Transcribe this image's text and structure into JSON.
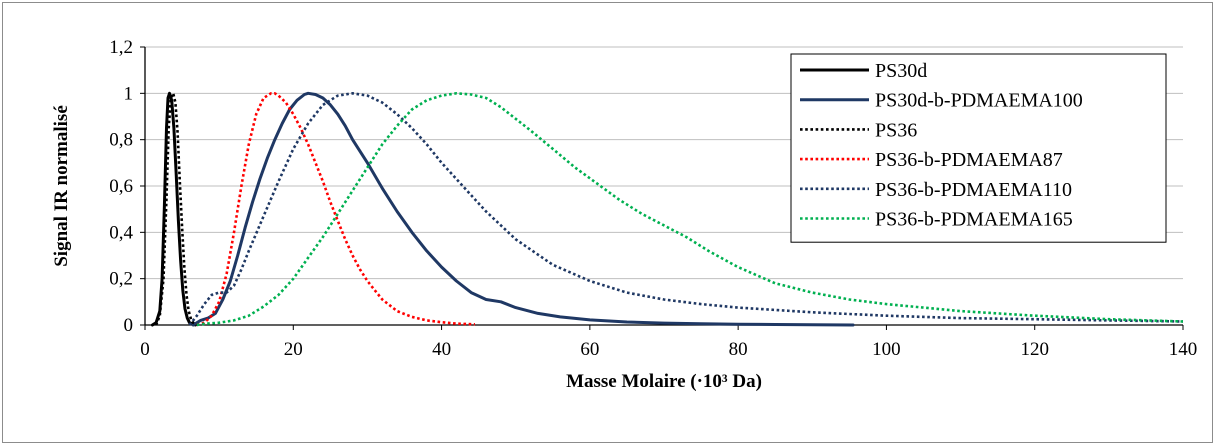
{
  "chart_data": {
    "type": "line",
    "title": "",
    "xlabel": "Masse Molaire (·10³ Da)",
    "ylabel": "Signal IR normalisé",
    "xlim": [
      0,
      140
    ],
    "ylim": [
      0,
      1.2
    ],
    "x_ticks": [
      0,
      20,
      40,
      60,
      80,
      100,
      120,
      140
    ],
    "y_ticks": [
      0,
      0.2,
      0.4,
      0.6,
      0.8,
      1,
      1.2
    ],
    "x_tick_labels": [
      "0",
      "20",
      "40",
      "60",
      "80",
      "100",
      "120",
      "140"
    ],
    "y_tick_labels": [
      "0",
      "0,2",
      "0,4",
      "0,6",
      "0,8",
      "1",
      "1,2"
    ],
    "grid": true,
    "legend_position": "top-right",
    "series": [
      {
        "name": "PS30d",
        "color": "#000000",
        "style": "solid",
        "x": [
          1.0,
          1.5,
          2.0,
          2.3,
          2.6,
          2.9,
          3.1,
          3.3,
          3.6,
          3.9,
          4.2,
          4.5,
          4.8,
          5.1,
          5.4,
          5.7,
          6.0,
          6.3,
          6.8
        ],
        "y": [
          0,
          0.01,
          0.06,
          0.2,
          0.5,
          0.85,
          0.98,
          1.0,
          0.97,
          0.85,
          0.66,
          0.45,
          0.28,
          0.15,
          0.07,
          0.03,
          0.01,
          0.005,
          0
        ]
      },
      {
        "name": "PS30d-b-PDMAEMA100",
        "color": "#1f3864",
        "style": "solid",
        "x": [
          6.5,
          7.5,
          8.5,
          9.5,
          10.5,
          11.5,
          12.5,
          13.5,
          14.5,
          15.5,
          16.5,
          17.5,
          18.5,
          19.5,
          20.5,
          21.5,
          22.0,
          23.0,
          24.0,
          25.0,
          26.0,
          27.0,
          28.0,
          30.0,
          32.0,
          34.0,
          36.0,
          38.0,
          40.0,
          42.0,
          44.0,
          46.0,
          48.0,
          50.0,
          53.0,
          56.0,
          60.0,
          65.0,
          70.0,
          75.0,
          80.0,
          85.0,
          90.0,
          95.5
        ],
        "y": [
          0,
          0.02,
          0.03,
          0.05,
          0.11,
          0.19,
          0.3,
          0.42,
          0.53,
          0.63,
          0.72,
          0.8,
          0.87,
          0.93,
          0.97,
          0.995,
          1.0,
          0.995,
          0.98,
          0.95,
          0.91,
          0.86,
          0.8,
          0.7,
          0.59,
          0.49,
          0.4,
          0.32,
          0.25,
          0.19,
          0.14,
          0.11,
          0.1,
          0.075,
          0.05,
          0.035,
          0.022,
          0.013,
          0.008,
          0.005,
          0.003,
          0.002,
          0.001,
          0
        ]
      },
      {
        "name": "PS36",
        "color": "#000000",
        "style": "dotted",
        "x": [
          1.5,
          2.0,
          2.5,
          2.9,
          3.2,
          3.5,
          3.8,
          4.1,
          4.4,
          4.7,
          5.0,
          5.3,
          5.6,
          5.9,
          6.2,
          6.5,
          7.0
        ],
        "y": [
          0,
          0.04,
          0.2,
          0.55,
          0.85,
          0.98,
          1.0,
          0.96,
          0.83,
          0.62,
          0.42,
          0.25,
          0.13,
          0.06,
          0.025,
          0.01,
          0
        ]
      },
      {
        "name": "PS36-b-PDMAEMA87",
        "color": "#ff0000",
        "style": "dotted",
        "x": [
          7.0,
          8.0,
          9.0,
          10.0,
          11.0,
          12.0,
          13.0,
          14.0,
          15.0,
          16.0,
          17.0,
          17.5,
          18.0,
          19.0,
          20.0,
          21.0,
          22.0,
          23.0,
          24.0,
          25.0,
          26.0,
          27.0,
          28.0,
          29.0,
          30.0,
          31.0,
          32.0,
          34.0,
          36.0,
          38.0,
          40.0,
          42.0,
          44.5
        ],
        "y": [
          0,
          0.01,
          0.04,
          0.1,
          0.22,
          0.4,
          0.6,
          0.78,
          0.91,
          0.98,
          1.0,
          1.0,
          0.99,
          0.96,
          0.91,
          0.85,
          0.78,
          0.7,
          0.62,
          0.53,
          0.45,
          0.37,
          0.3,
          0.24,
          0.19,
          0.15,
          0.11,
          0.06,
          0.035,
          0.02,
          0.012,
          0.006,
          0.003
        ]
      },
      {
        "name": "PS36-b-PDMAEMA110",
        "color": "#1f3864",
        "style": "dotted",
        "x": [
          6.0,
          7.0,
          8.0,
          9.0,
          10.0,
          11.0,
          12.0,
          13.0,
          14.0,
          16.0,
          18.0,
          20.0,
          22.0,
          24.0,
          26.0,
          28.0,
          30.0,
          32.0,
          34.0,
          36.0,
          38.0,
          40.0,
          42.0,
          44.0,
          46.0,
          48.0,
          50.0,
          55.0,
          60.0,
          65.0,
          70.0,
          75.0,
          80.0,
          90.0,
          100.0,
          110.0,
          120.0,
          130.0,
          140.0
        ],
        "y": [
          0.0,
          0.04,
          0.09,
          0.13,
          0.14,
          0.14,
          0.17,
          0.24,
          0.32,
          0.47,
          0.62,
          0.76,
          0.87,
          0.95,
          0.99,
          1.0,
          0.99,
          0.96,
          0.91,
          0.85,
          0.78,
          0.7,
          0.63,
          0.56,
          0.49,
          0.43,
          0.37,
          0.26,
          0.19,
          0.14,
          0.11,
          0.09,
          0.075,
          0.055,
          0.04,
          0.03,
          0.025,
          0.02,
          0.015
        ]
      },
      {
        "name": "PS36-b-PDMAEMA165",
        "color": "#00b050",
        "style": "dotted",
        "x": [
          7.0,
          8.0,
          10.0,
          12.0,
          14.0,
          16.0,
          18.0,
          20.0,
          22.0,
          24.0,
          26.0,
          28.0,
          30.0,
          32.0,
          34.0,
          36.0,
          38.0,
          40.0,
          42.0,
          44.0,
          46.0,
          48.0,
          50.0,
          52.0,
          55.0,
          58.0,
          61.0,
          64.0,
          67.0,
          70.0,
          73.0,
          76.0,
          80.0,
          85.0,
          90.0,
          95.0,
          100.0,
          110.0,
          120.0,
          130.0,
          140.0
        ],
        "y": [
          0,
          0.005,
          0.01,
          0.02,
          0.04,
          0.08,
          0.13,
          0.2,
          0.29,
          0.38,
          0.48,
          0.58,
          0.68,
          0.78,
          0.86,
          0.93,
          0.97,
          0.99,
          1.0,
          0.995,
          0.98,
          0.94,
          0.89,
          0.84,
          0.76,
          0.68,
          0.61,
          0.54,
          0.48,
          0.43,
          0.38,
          0.32,
          0.25,
          0.18,
          0.14,
          0.11,
          0.09,
          0.06,
          0.04,
          0.025,
          0.015
        ]
      }
    ]
  }
}
